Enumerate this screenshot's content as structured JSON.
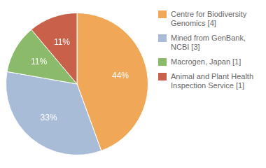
{
  "chart_data": {
    "type": "pie",
    "categories": [
      "Centre for Biodiversity\nGenomics [4]",
      "Mined from GenBank, NCBI [3]",
      "Macrogen, Japan [1]",
      "Animal and Plant Health\nInspection Service [1]"
    ],
    "values": [
      44,
      33,
      11,
      11
    ],
    "value_labels": [
      "44%",
      "33%",
      "11%",
      "11%"
    ],
    "colors": [
      "#f0a858",
      "#a8bcd8",
      "#8aba6a",
      "#c8604a"
    ],
    "data_labels": true,
    "legend": "right"
  }
}
